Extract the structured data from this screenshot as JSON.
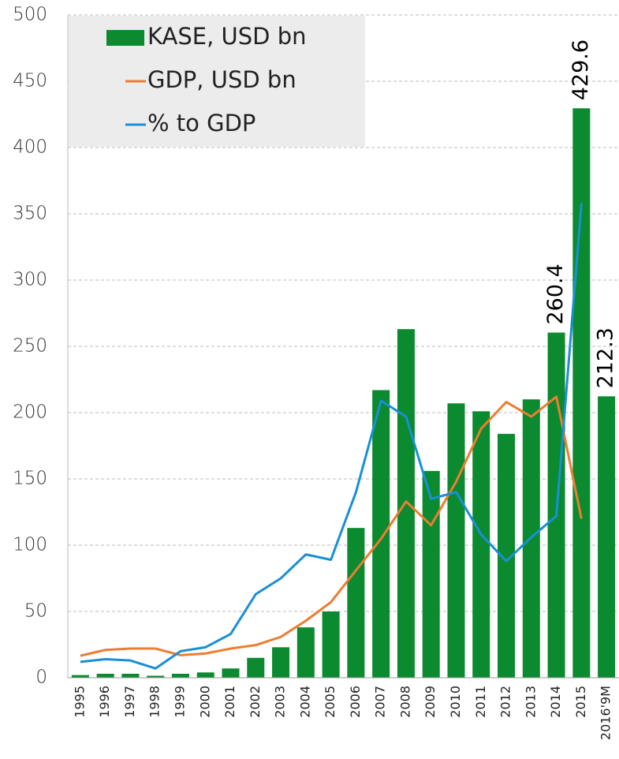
{
  "chart_data": {
    "type": "bar",
    "categories": [
      "1995",
      "1996",
      "1997",
      "1998",
      "1999",
      "2000",
      "2001",
      "2002",
      "2003",
      "2004",
      "2005",
      "2006",
      "2007",
      "2008",
      "2009",
      "2010",
      "2011",
      "2012",
      "2013",
      "2014",
      "2015",
      "2016'9M"
    ],
    "series": [
      {
        "name": "KASE, USD bn",
        "type": "bar",
        "color": "#0b8a2f",
        "values": [
          2,
          3,
          3,
          1.5,
          3,
          4,
          7,
          15,
          23,
          38,
          50,
          113,
          217,
          263,
          156,
          207,
          201,
          184,
          210,
          260.4,
          429.6,
          212.3
        ],
        "value_labels": [
          null,
          null,
          null,
          null,
          null,
          null,
          null,
          null,
          null,
          null,
          null,
          null,
          null,
          null,
          null,
          null,
          null,
          null,
          null,
          "260.4",
          "429.6",
          "212.3"
        ]
      },
      {
        "name": "GDP, USD bn",
        "type": "line",
        "color": "#ed7d31",
        "values": [
          16.6,
          21,
          22,
          22,
          17,
          18.3,
          22,
          24.6,
          30.8,
          43,
          57,
          81,
          104.8,
          133,
          115,
          148,
          188,
          208,
          197,
          212,
          120,
          null
        ]
      },
      {
        "name": "% to GDP",
        "type": "line",
        "color": "#1a8fd6",
        "values": [
          12,
          14,
          13,
          7,
          20,
          23,
          33,
          63,
          75,
          93,
          89,
          140,
          209,
          197,
          135,
          140,
          108,
          88,
          106,
          122,
          358,
          null
        ]
      }
    ],
    "ylim": [
      0,
      500
    ],
    "yticks": [
      0,
      50,
      100,
      150,
      200,
      250,
      300,
      350,
      400,
      450,
      500
    ],
    "grid": true,
    "legend": "top-left"
  }
}
